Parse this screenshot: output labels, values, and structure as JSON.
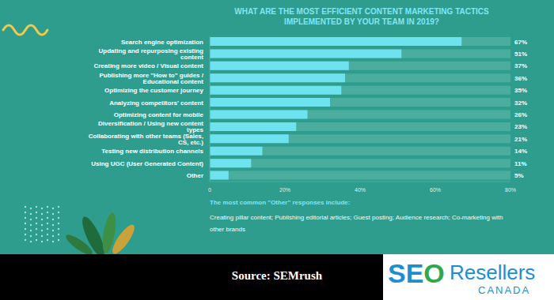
{
  "chart_data": {
    "type": "bar",
    "orientation": "horizontal",
    "title": "WHAT ARE THE MOST EFFICIENT CONTENT MARKETING TACTICS IMPLEMENTED BY YOUR TEAM IN 2019?",
    "categories": [
      "Search engine optimization",
      "Updating and repurposing existing content",
      "Creating more video / Visual content",
      "Publishing more \"How to\" guides / Educational content",
      "Optimizing the customer journey",
      "Analyzing competitors' content",
      "Optimizing content for mobile",
      "Diversification / Using new content types",
      "Collaborating with other teams (Sales, CS, etc.)",
      "Testing new distribution channels",
      "Using UGC (User Generated Content)",
      "Other"
    ],
    "values": [
      67,
      51,
      37,
      36,
      35,
      32,
      26,
      23,
      21,
      14,
      11,
      5
    ],
    "value_labels": [
      "67%",
      "51%",
      "37%",
      "36%",
      "35%",
      "32%",
      "26%",
      "23%",
      "21%",
      "14%",
      "11%",
      "5%"
    ],
    "data_labels": true,
    "color": "#6fe2f0",
    "xlim": [
      0,
      80
    ],
    "xticks": [
      0,
      {
        "value": 20,
        "label": "20%"
      },
      {
        "value": 40,
        "label": "40%"
      },
      {
        "value": 60,
        "label": "60%"
      },
      {
        "value": 80,
        "label": "80%"
      }
    ],
    "grid": false,
    "annotations": [
      "The most common \"Other\" responses include:",
      "Creating pillar content; Publishing editorial articles; Guest posting; Audience research; Co-marketing with other brands"
    ]
  },
  "footer": {
    "source": "Source: SEMrush",
    "logo": [
      "SE",
      "O",
      "Resellers",
      "CANADA"
    ]
  }
}
